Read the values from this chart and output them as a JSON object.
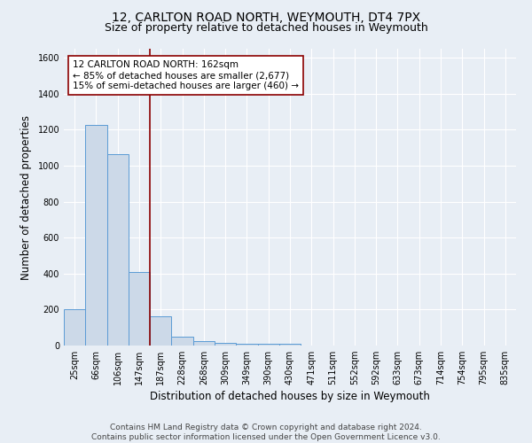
{
  "title": "12, CARLTON ROAD NORTH, WEYMOUTH, DT4 7PX",
  "subtitle": "Size of property relative to detached houses in Weymouth",
  "xlabel": "Distribution of detached houses by size in Weymouth",
  "ylabel": "Number of detached properties",
  "footer_line1": "Contains HM Land Registry data © Crown copyright and database right 2024.",
  "footer_line2": "Contains public sector information licensed under the Open Government Licence v3.0.",
  "bar_labels": [
    "25sqm",
    "66sqm",
    "106sqm",
    "147sqm",
    "187sqm",
    "228sqm",
    "268sqm",
    "309sqm",
    "349sqm",
    "390sqm",
    "430sqm",
    "471sqm",
    "511sqm",
    "552sqm",
    "592sqm",
    "633sqm",
    "673sqm",
    "714sqm",
    "754sqm",
    "795sqm",
    "835sqm"
  ],
  "bar_values": [
    200,
    1225,
    1065,
    410,
    165,
    50,
    25,
    15,
    10,
    10,
    10,
    0,
    0,
    0,
    0,
    0,
    0,
    0,
    0,
    0,
    0
  ],
  "bar_color": "#ccd9e8",
  "bar_edge_color": "#5b9bd5",
  "vline_x": 3.5,
  "vline_color": "#8b0000",
  "annotation_text": "12 CARLTON ROAD NORTH: 162sqm\n← 85% of detached houses are smaller (2,677)\n15% of semi-detached houses are larger (460) →",
  "annotation_box_color": "white",
  "annotation_box_edge": "#8b0000",
  "ylim": [
    0,
    1650
  ],
  "yticks": [
    0,
    200,
    400,
    600,
    800,
    1000,
    1200,
    1400,
    1600
  ],
  "bg_color": "#e8eef5",
  "plot_bg_color": "#e8eef5",
  "grid_color": "white",
  "title_fontsize": 10,
  "subtitle_fontsize": 9,
  "axis_label_fontsize": 8.5,
  "tick_fontsize": 7,
  "footer_fontsize": 6.5
}
